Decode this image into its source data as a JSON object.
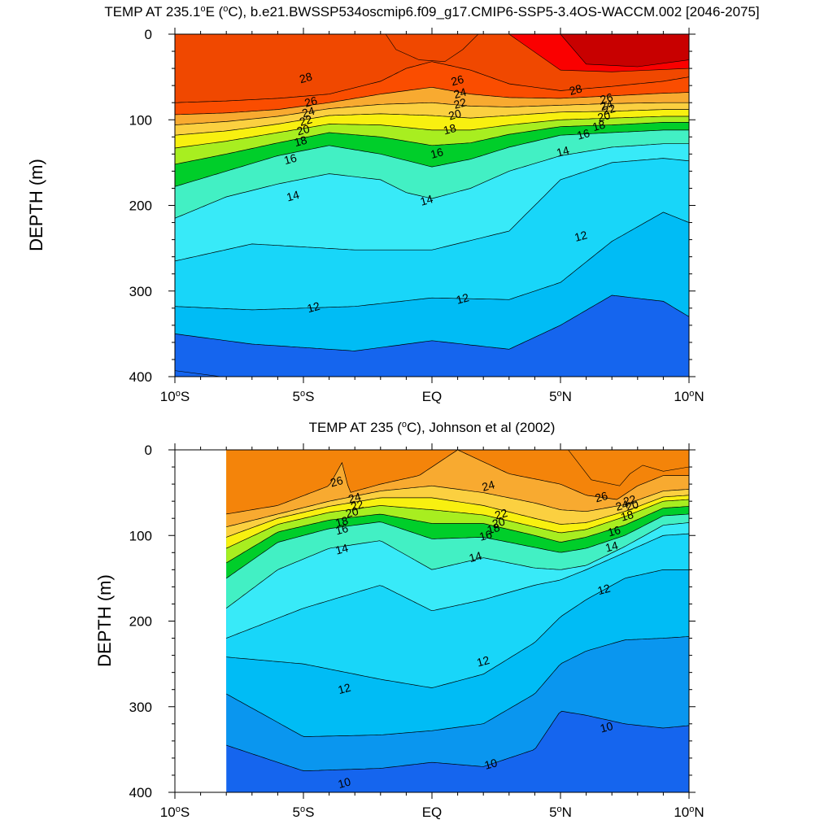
{
  "chart_data": [
    {
      "type": "contour",
      "title": "TEMP AT 235.1°E (°C), b.e21.BWSSP534oscmip6.f09_g17.CMIP6-SSP5-3.4OS-WACCM.002 [2046-2075]",
      "title_parts": [
        "TEMP AT 235.1",
        "o",
        "E (",
        "o",
        "C), b.e21.BWSSP534oscmip6.f09_g17.CMIP6-SSP5-3.4OS-WACCM.002 [2046-2075]"
      ],
      "xlabel": "",
      "ylabel": "DEPTH (m)",
      "xlim": [
        -10,
        10
      ],
      "ylim": [
        400,
        0
      ],
      "x_ticks": [
        {
          "value": -10,
          "label": "10",
          "deg": "o",
          "suffix": "S"
        },
        {
          "value": -5,
          "label": "5",
          "deg": "o",
          "suffix": "S"
        },
        {
          "value": 0,
          "label": "EQ",
          "deg": "",
          "suffix": ""
        },
        {
          "value": 5,
          "label": "5",
          "deg": "o",
          "suffix": "N"
        },
        {
          "value": 10,
          "label": "10",
          "deg": "o",
          "suffix": "N"
        }
      ],
      "y_ticks": [
        0,
        100,
        200,
        300,
        400
      ],
      "data_xrange": [
        -10,
        10
      ],
      "isotherms": [
        {
          "level": 11,
          "x": [
            -10,
            -7,
            -3,
            0,
            3,
            5,
            7,
            9,
            10
          ],
          "depth": [
            350,
            362,
            370,
            358,
            368,
            340,
            305,
            312,
            330
          ]
        },
        {
          "level": 12,
          "x": [
            -10,
            -7,
            -3,
            0,
            3,
            5,
            7,
            9,
            10
          ],
          "depth": [
            318,
            322,
            318,
            308,
            310,
            290,
            242,
            208,
            220
          ]
        },
        {
          "level": 13,
          "x": [
            -10,
            -7,
            -3,
            0,
            3,
            5,
            7,
            9,
            10
          ],
          "depth": [
            265,
            245,
            252,
            252,
            230,
            170,
            150,
            145,
            148
          ]
        },
        {
          "level": 14,
          "x": [
            -10,
            -8,
            -6,
            -4,
            -2,
            -1,
            0,
            1.5,
            3,
            5,
            7,
            9,
            10
          ],
          "depth": [
            215,
            190,
            175,
            163,
            170,
            185,
            192,
            180,
            160,
            142,
            132,
            128,
            128
          ]
        },
        {
          "level": 16,
          "x": [
            -10,
            -8,
            -6,
            -4,
            -2,
            0,
            1.5,
            3,
            5,
            7,
            9,
            10
          ],
          "depth": [
            178,
            160,
            142,
            130,
            140,
            155,
            146,
            132,
            118,
            115,
            112,
            112
          ]
        },
        {
          "level": 18,
          "x": [
            -10,
            -8,
            -6,
            -4,
            -2,
            0,
            1.5,
            3,
            5,
            7,
            9,
            10
          ],
          "depth": [
            152,
            140,
            127,
            115,
            120,
            130,
            127,
            117,
            108,
            106,
            103,
            103
          ]
        },
        {
          "level": 20,
          "x": [
            -10,
            -8,
            -6,
            -4,
            -2,
            0,
            1.5,
            3,
            5,
            7,
            9,
            10
          ],
          "depth": [
            133,
            125,
            115,
            105,
            106,
            112,
            112,
            106,
            100,
            98,
            96,
            96
          ]
        },
        {
          "level": 22,
          "x": [
            -10,
            -8,
            -6,
            -4,
            -2,
            0,
            1.5,
            3,
            5,
            7,
            9,
            10
          ],
          "depth": [
            118,
            113,
            105,
            95,
            93,
            95,
            98,
            95,
            91,
            90,
            88,
            88
          ]
        },
        {
          "level": 24,
          "x": [
            -10,
            -8,
            -6,
            -4,
            -2,
            0,
            1.5,
            3,
            5,
            7,
            9,
            10
          ],
          "depth": [
            106,
            102,
            96,
            87,
            82,
            80,
            84,
            85,
            83,
            81,
            80,
            80
          ]
        },
        {
          "level": 26,
          "x": [
            -10,
            -8,
            -6,
            -4,
            -2,
            0,
            1.5,
            3,
            5,
            7,
            9,
            10
          ],
          "depth": [
            94,
            92,
            88,
            80,
            70,
            62,
            70,
            74,
            75,
            72,
            69,
            68
          ]
        },
        {
          "level": 28,
          "x": [
            -10,
            -8,
            -6,
            -4,
            -2,
            -1,
            0,
            1.5,
            3,
            5,
            7,
            9,
            10
          ],
          "depth": [
            80,
            78,
            75,
            70,
            55,
            40,
            32,
            42,
            58,
            66,
            61,
            55,
            50
          ]
        }
      ],
      "warm_pools": [
        {
          "level": 29,
          "x": [
            -1.8,
            -1.4,
            -0.5,
            0.5,
            1.2,
            1.8
          ],
          "depth": [
            0,
            18,
            30,
            32,
            18,
            0
          ]
        },
        {
          "level": 30,
          "x": [
            3,
            5,
            7,
            10
          ],
          "depth": [
            0,
            42,
            44,
            40
          ]
        },
        {
          "level": 31,
          "x": [
            5,
            6,
            8,
            10
          ],
          "depth": [
            0,
            35,
            38,
            30
          ]
        }
      ],
      "deep_pool": {
        "level": 10,
        "x": [
          -10,
          -8.2
        ],
        "depth": [
          393,
          400
        ]
      },
      "contour_labels": [
        {
          "text": "28",
          "x": -4.9,
          "depth": 52
        },
        {
          "text": "26",
          "x": -4.7,
          "depth": 80
        },
        {
          "text": "24",
          "x": -4.8,
          "depth": 92
        },
        {
          "text": "22",
          "x": -4.9,
          "depth": 102
        },
        {
          "text": "20",
          "x": -5.0,
          "depth": 113
        },
        {
          "text": "18",
          "x": -5.1,
          "depth": 126
        },
        {
          "text": "16",
          "x": -5.5,
          "depth": 147
        },
        {
          "text": "14",
          "x": -5.4,
          "depth": 190
        },
        {
          "text": "26",
          "x": 1.0,
          "depth": 55
        },
        {
          "text": "24",
          "x": 1.1,
          "depth": 70
        },
        {
          "text": "22",
          "x": 1.1,
          "depth": 82
        },
        {
          "text": "20",
          "x": 0.9,
          "depth": 95
        },
        {
          "text": "18",
          "x": 0.7,
          "depth": 112
        },
        {
          "text": "16",
          "x": 0.2,
          "depth": 140
        },
        {
          "text": "14",
          "x": -0.2,
          "depth": 195
        },
        {
          "text": "28",
          "x": 5.6,
          "depth": 66
        },
        {
          "text": "26",
          "x": 6.8,
          "depth": 76
        },
        {
          "text": "24",
          "x": 6.8,
          "depth": 84
        },
        {
          "text": "22",
          "x": 6.9,
          "depth": 89
        },
        {
          "text": "20",
          "x": 6.7,
          "depth": 97
        },
        {
          "text": "18",
          "x": 6.5,
          "depth": 108
        },
        {
          "text": "16",
          "x": 5.9,
          "depth": 118
        },
        {
          "text": "14",
          "x": 5.1,
          "depth": 138
        },
        {
          "text": "12",
          "x": 5.8,
          "depth": 237
        },
        {
          "text": "12",
          "x": -4.6,
          "depth": 320
        },
        {
          "text": "12",
          "x": 1.2,
          "depth": 310
        }
      ]
    },
    {
      "type": "contour",
      "title": "TEMP AT 235 (°C), Johnson et al (2002)",
      "title_parts": [
        "TEMP AT 235 (",
        "o",
        "C), Johnson et al (2002)"
      ],
      "xlabel": "",
      "ylabel": "DEPTH (m)",
      "xlim": [
        -10,
        10
      ],
      "ylim": [
        400,
        0
      ],
      "x_ticks": [
        {
          "value": -10,
          "label": "10",
          "deg": "o",
          "suffix": "S"
        },
        {
          "value": -5,
          "label": "5",
          "deg": "o",
          "suffix": "S"
        },
        {
          "value": 0,
          "label": "EQ",
          "deg": "",
          "suffix": ""
        },
        {
          "value": 5,
          "label": "5",
          "deg": "o",
          "suffix": "N"
        },
        {
          "value": 10,
          "label": "10",
          "deg": "o",
          "suffix": "N"
        }
      ],
      "y_ticks": [
        0,
        100,
        200,
        300,
        400
      ],
      "data_xrange": [
        -8,
        10
      ],
      "isotherms": [
        {
          "level": 10,
          "x": [
            -8,
            -5,
            -2,
            0,
            2,
            4,
            5,
            6,
            7.5,
            9,
            10
          ],
          "depth": [
            345,
            375,
            372,
            365,
            370,
            350,
            305,
            310,
            320,
            325,
            322
          ]
        },
        {
          "level": 11,
          "x": [
            -8,
            -5,
            -2,
            0,
            2,
            4,
            5,
            6,
            7.5,
            9,
            10
          ],
          "depth": [
            285,
            335,
            333,
            328,
            320,
            285,
            250,
            235,
            222,
            220,
            218
          ]
        },
        {
          "level": 12,
          "x": [
            -8,
            -5,
            -2,
            0,
            2,
            4,
            5,
            6,
            7.5,
            9,
            10
          ],
          "depth": [
            242,
            250,
            268,
            278,
            262,
            225,
            195,
            175,
            150,
            140,
            140
          ]
        },
        {
          "level": 13,
          "x": [
            -8,
            -5,
            -2,
            0,
            2,
            4,
            5,
            6,
            7.5,
            9,
            10
          ],
          "depth": [
            220,
            185,
            158,
            188,
            175,
            158,
            152,
            140,
            120,
            100,
            98
          ]
        },
        {
          "level": 14,
          "x": [
            -8,
            -6,
            -4,
            -2,
            0,
            2,
            4,
            5,
            6,
            7.5,
            9,
            10
          ],
          "depth": [
            185,
            140,
            115,
            106,
            140,
            126,
            138,
            140,
            135,
            113,
            88,
            85
          ]
        },
        {
          "level": 16,
          "x": [
            -8,
            -6,
            -4,
            -2,
            0,
            2,
            4,
            5,
            6,
            7.5,
            9,
            10
          ],
          "depth": [
            150,
            108,
            92,
            84,
            104,
            102,
            114,
            120,
            115,
            100,
            77,
            75
          ]
        },
        {
          "level": 18,
          "x": [
            -8,
            -6,
            -4,
            -2,
            0,
            2,
            4,
            5,
            6,
            7.5,
            9,
            10
          ],
          "depth": [
            132,
            96,
            82,
            75,
            86,
            86,
            100,
            108,
            102,
            88,
            68,
            66
          ]
        },
        {
          "level": 20,
          "x": [
            -8,
            -6,
            -4,
            -2,
            0,
            2,
            4,
            5,
            6,
            7.5,
            9,
            10
          ],
          "depth": [
            115,
            87,
            73,
            65,
            70,
            76,
            90,
            97,
            93,
            78,
            60,
            58
          ]
        },
        {
          "level": 22,
          "x": [
            -8,
            -6,
            -4,
            -2,
            0,
            2,
            4,
            5,
            6,
            7.5,
            9,
            10
          ],
          "depth": [
            102,
            80,
            66,
            56,
            56,
            65,
            80,
            87,
            85,
            72,
            55,
            53
          ]
        },
        {
          "level": 24,
          "x": [
            -8,
            -6,
            -4,
            -2,
            0,
            2,
            4,
            5,
            6,
            7.5,
            9,
            10
          ],
          "depth": [
            90,
            75,
            60,
            48,
            42,
            50,
            62,
            70,
            72,
            64,
            48,
            46
          ]
        },
        {
          "level": 26,
          "x": [
            -8,
            -6,
            -4,
            -3.5,
            -3.2,
            -2,
            -0.5,
            1,
            3,
            5,
            6,
            7.2,
            8,
            9,
            10
          ],
          "depth": [
            75,
            65,
            42,
            15,
            50,
            40,
            30,
            0,
            28,
            40,
            53,
            58,
            42,
            30,
            30
          ]
        }
      ],
      "warm_pools": [
        {
          "level": 27,
          "x": [
            5.3,
            6.2,
            7.3,
            7.7,
            8.2,
            9,
            10
          ],
          "depth": [
            0,
            35,
            42,
            28,
            18,
            25,
            20
          ]
        }
      ],
      "contour_labels": [
        {
          "text": "26",
          "x": -3.7,
          "depth": 38
        },
        {
          "text": "24",
          "x": -3.0,
          "depth": 57
        },
        {
          "text": "22",
          "x": -2.9,
          "depth": 66
        },
        {
          "text": "20",
          "x": -3.1,
          "depth": 74
        },
        {
          "text": "18",
          "x": -3.5,
          "depth": 85
        },
        {
          "text": "16",
          "x": -3.5,
          "depth": 94
        },
        {
          "text": "14",
          "x": -3.5,
          "depth": 117
        },
        {
          "text": "24",
          "x": 2.2,
          "depth": 43
        },
        {
          "text": "22",
          "x": 2.7,
          "depth": 76
        },
        {
          "text": "20",
          "x": 2.6,
          "depth": 86
        },
        {
          "text": "18",
          "x": 2.4,
          "depth": 93
        },
        {
          "text": "16",
          "x": 2.1,
          "depth": 101
        },
        {
          "text": "14",
          "x": 1.7,
          "depth": 126
        },
        {
          "text": "26",
          "x": 6.6,
          "depth": 56
        },
        {
          "text": "24",
          "x": 7.4,
          "depth": 66
        },
        {
          "text": "22",
          "x": 7.7,
          "depth": 60
        },
        {
          "text": "20",
          "x": 7.8,
          "depth": 66
        },
        {
          "text": "18",
          "x": 7.6,
          "depth": 78
        },
        {
          "text": "16",
          "x": 7.1,
          "depth": 96
        },
        {
          "text": "14",
          "x": 7.0,
          "depth": 114
        },
        {
          "text": "12",
          "x": 6.7,
          "depth": 164
        },
        {
          "text": "12",
          "x": 2.0,
          "depth": 248
        },
        {
          "text": "12",
          "x": -3.4,
          "depth": 280
        },
        {
          "text": "10",
          "x": 6.8,
          "depth": 325
        },
        {
          "text": "10",
          "x": 2.3,
          "depth": 368
        },
        {
          "text": "10",
          "x": -3.4,
          "depth": 390
        }
      ]
    }
  ],
  "colors": {
    "10": "#1565ee",
    "11": "#0a96ef",
    "12": "#00bcf5",
    "13": "#18d6f9",
    "14": "#38eaf8",
    "16": "#42f0c4",
    "18": "#00ce2a",
    "20": "#a8ee20",
    "22": "#f8f010",
    "24": "#fbd040",
    "26": "#f8aa30",
    "27": "#f4840a",
    "28": "#fa4d00",
    "29": "#f04800",
    "30": "#fa0000",
    "31": "#c80000",
    "axis": "#000000",
    "contour_line": "#000000",
    "background": "#ffffff"
  }
}
